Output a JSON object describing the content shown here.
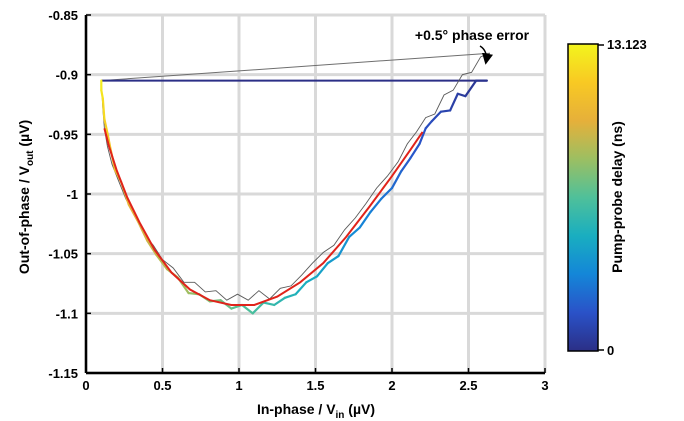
{
  "chart_data": {
    "type": "line",
    "xlabel": "In-phase / V",
    "xlabel_sub": "in",
    "xlabel_unit": " (µV)",
    "ylabel": "Out-of-phase / V",
    "ylabel_sub": "out",
    "ylabel_unit": " (µV)",
    "xlim": [
      0,
      3
    ],
    "ylim": [
      -1.15,
      -0.85
    ],
    "x_ticks": [
      "0",
      "0.5",
      "1",
      "1.5",
      "2",
      "2.5",
      "3"
    ],
    "y_ticks": [
      "-0.85",
      "-0.9",
      "-0.95",
      "-1",
      "-1.05",
      "-1.1",
      "-1.15"
    ],
    "grid": true,
    "annotation": "+0.5° phase error",
    "colorbar": {
      "label": "Pump-probe delay (ns)",
      "min_label": "0",
      "max_label": "13.123",
      "min": 0,
      "max": 13.123,
      "colors": [
        "#2b2f86",
        "#2a52c8",
        "#1486d8",
        "#19aec0",
        "#4fc09a",
        "#9cbf62",
        "#e6b03a",
        "#f8c923",
        "#f3f51d"
      ]
    },
    "series": [
      {
        "style": "measured trajectory colored by pump-probe delay",
        "x": [
          2.62,
          2.55,
          2.48,
          2.43,
          2.38,
          2.32,
          2.26,
          2.22,
          2.18,
          2.12,
          2.06,
          2.0,
          1.93,
          1.86,
          1.79,
          1.72,
          1.65,
          1.58,
          1.51,
          1.44,
          1.37,
          1.3,
          1.23,
          1.16,
          1.09,
          1.02,
          0.95,
          0.88,
          0.81,
          0.74,
          0.67,
          0.6,
          0.53,
          0.46,
          0.4,
          0.34,
          0.28,
          0.23,
          0.19,
          0.16,
          0.14,
          0.12,
          0.11,
          0.1,
          0.1
        ],
        "y": [
          -0.905,
          -0.905,
          -0.918,
          -0.916,
          -0.93,
          -0.931,
          -0.939,
          -0.945,
          -0.958,
          -0.97,
          -0.981,
          -0.995,
          -1.004,
          -1.015,
          -1.028,
          -1.036,
          -1.052,
          -1.058,
          -1.069,
          -1.074,
          -1.084,
          -1.087,
          -1.093,
          -1.091,
          -1.1,
          -1.093,
          -1.096,
          -1.089,
          -1.09,
          -1.084,
          -1.083,
          -1.07,
          -1.063,
          -1.051,
          -1.039,
          -1.023,
          -1.009,
          -0.99,
          -0.98,
          -0.962,
          -0.949,
          -0.937,
          -0.92,
          -0.913,
          -0.905
        ],
        "delay": [
          0.2,
          0.4,
          0.6,
          0.8,
          1.0,
          1.2,
          1.4,
          1.6,
          1.8,
          2.0,
          2.3,
          2.6,
          2.9,
          3.2,
          3.5,
          3.8,
          4.1,
          4.4,
          4.7,
          5.0,
          5.3,
          5.6,
          5.9,
          6.2,
          6.5,
          6.8,
          7.1,
          7.4,
          7.7,
          8.0,
          8.3,
          8.6,
          8.9,
          9.2,
          9.5,
          9.8,
          10.1,
          10.5,
          10.9,
          11.3,
          11.7,
          12.1,
          12.5,
          12.8,
          13.1
        ]
      },
      {
        "style": "measured trajectory with +0.5° phase error (thin gray)",
        "x": [
          2.64,
          2.58,
          2.52,
          2.46,
          2.4,
          2.34,
          2.28,
          2.22,
          2.16,
          2.1,
          2.04,
          1.97,
          1.9,
          1.83,
          1.76,
          1.69,
          1.62,
          1.55,
          1.48,
          1.41,
          1.34,
          1.27,
          1.2,
          1.13,
          1.06,
          0.99,
          0.92,
          0.85,
          0.78,
          0.71,
          0.64,
          0.57,
          0.5,
          0.44,
          0.38,
          0.32,
          0.26,
          0.21,
          0.17,
          0.14,
          0.12,
          0.11,
          0.1
        ],
        "y": [
          -0.882,
          -0.885,
          -0.898,
          -0.9,
          -0.913,
          -0.917,
          -0.933,
          -0.936,
          -0.948,
          -0.958,
          -0.973,
          -0.985,
          -0.995,
          -1.008,
          -1.02,
          -1.03,
          -1.043,
          -1.049,
          -1.058,
          -1.068,
          -1.077,
          -1.079,
          -1.088,
          -1.081,
          -1.089,
          -1.084,
          -1.089,
          -1.081,
          -1.082,
          -1.074,
          -1.074,
          -1.062,
          -1.055,
          -1.043,
          -1.034,
          -1.018,
          -1.004,
          -0.988,
          -0.975,
          -0.96,
          -0.945,
          -0.928,
          -0.905
        ]
      },
      {
        "style": "fit (red)",
        "x": [
          0.12,
          0.15,
          0.2,
          0.27,
          0.35,
          0.45,
          0.56,
          0.68,
          0.81,
          0.95,
          1.1,
          1.25,
          1.4,
          1.55,
          1.7,
          1.85,
          2.0,
          2.12,
          2.2
        ],
        "y": [
          -0.945,
          -0.96,
          -0.98,
          -1.003,
          -1.024,
          -1.047,
          -1.066,
          -1.08,
          -1.089,
          -1.093,
          -1.093,
          -1.086,
          -1.074,
          -1.058,
          -1.036,
          -1.011,
          -0.985,
          -0.963,
          -0.948
        ]
      },
      {
        "style": "return line (thin gray)",
        "x": [
          0.1,
          2.64
        ],
        "y": [
          -0.905,
          -0.882
        ]
      },
      {
        "style": "return line (dark blue)",
        "x": [
          0.1,
          2.62
        ],
        "y": [
          -0.905,
          -0.905
        ]
      }
    ]
  }
}
